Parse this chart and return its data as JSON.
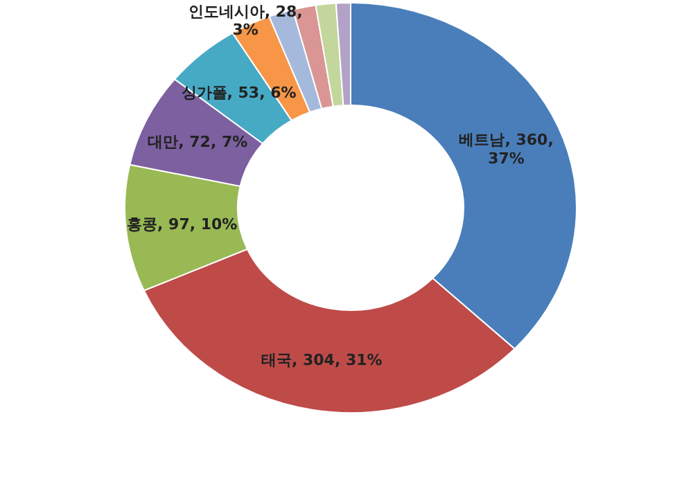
{
  "chart_data": {
    "type": "donut",
    "categories": [
      "베트남",
      "태국",
      "홍콩",
      "대만",
      "싱가폴",
      "인도네시아",
      null,
      null,
      null,
      null
    ],
    "values": [
      360,
      304,
      97,
      72,
      53,
      28,
      17,
      16,
      14,
      10
    ],
    "colors": [
      "#4a7ebb",
      "#be4b48",
      "#98b954",
      "#7d60a0",
      "#46aac5",
      "#f79646",
      "#a5b9dd",
      "#d99694",
      "#c3d69b",
      "#b3a2c7"
    ],
    "value_labels": [
      "360, 37%",
      "304, 31%",
      "97, 10%",
      "72, 7%",
      "53, 6%",
      "28, 3%",
      null,
      null,
      null,
      null
    ]
  }
}
